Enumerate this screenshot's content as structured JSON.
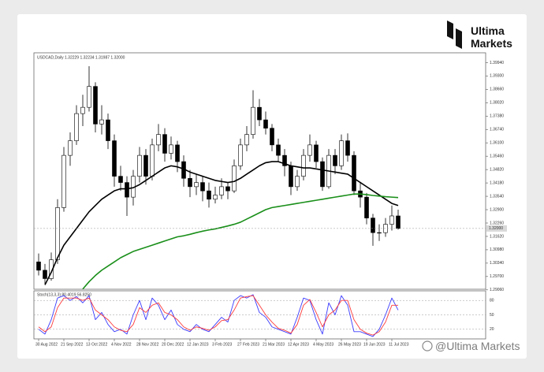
{
  "logo": {
    "line1": "Ultima",
    "line2": "Markets"
  },
  "watermark": "@Ultima Markets",
  "chart_data": {
    "type": "candlestick",
    "title": "USDCAD,Daily 1.32229 1.32234 1.31987 1.32000",
    "categories": [
      "30 Aug 2022",
      null,
      null,
      null,
      "21 Sep 2022",
      null,
      null,
      null,
      "13 Oct 2022",
      null,
      null,
      null,
      "4 Nov 2022",
      null,
      null,
      null,
      "28 Nov 2022",
      null,
      null,
      null,
      "20 Dec 2022",
      null,
      null,
      null,
      "12 Jan 2023",
      null,
      null,
      null,
      "3 Feb 2023",
      null,
      null,
      null,
      "27 Feb 2023",
      null,
      null,
      null,
      "21 Mar 2023",
      null,
      null,
      null,
      "12 Apr 2023",
      null,
      null,
      null,
      "4 May 2023",
      null,
      null,
      null,
      "26 May 2023",
      null,
      null,
      null,
      "19 Jun 2023",
      null,
      null,
      null,
      "11 Jul 2023",
      null
    ],
    "open": [
      1.304,
      1.3,
      1.296,
      1.305,
      1.33,
      1.355,
      1.362,
      1.375,
      1.378,
      1.388,
      1.37,
      1.372,
      1.362,
      1.345,
      1.342,
      1.335,
      1.345,
      1.355,
      1.345,
      1.36,
      1.365,
      1.356,
      1.36,
      1.352,
      1.344,
      1.34,
      1.342,
      1.338,
      1.334,
      1.336,
      1.34,
      1.338,
      1.35,
      1.36,
      1.365,
      1.378,
      1.372,
      1.368,
      1.36,
      1.355,
      1.35,
      1.34,
      1.345,
      1.355,
      1.36,
      1.352,
      1.34,
      1.355,
      1.35,
      1.362,
      1.355,
      1.338,
      1.335,
      1.325,
      1.318,
      1.318,
      1.322,
      1.326
    ],
    "high": [
      1.308,
      1.303,
      1.3085,
      1.334,
      1.359,
      1.366,
      1.379,
      1.384,
      1.3977,
      1.39,
      1.379,
      1.375,
      1.365,
      1.35,
      1.345,
      1.348,
      1.359,
      1.358,
      1.363,
      1.37,
      1.368,
      1.364,
      1.362,
      1.355,
      1.348,
      1.346,
      1.345,
      1.342,
      1.34,
      1.344,
      1.342,
      1.353,
      1.363,
      1.369,
      1.3862,
      1.382,
      1.376,
      1.37,
      1.363,
      1.358,
      1.352,
      1.348,
      1.358,
      1.365,
      1.362,
      1.354,
      1.358,
      1.358,
      1.365,
      1.3655,
      1.357,
      1.342,
      1.337,
      1.327,
      1.322,
      1.325,
      1.331,
      1.329
    ],
    "low": [
      1.2975,
      1.2935,
      1.295,
      1.303,
      1.328,
      1.35,
      1.36,
      1.369,
      1.376,
      1.366,
      1.365,
      1.358,
      1.34,
      1.338,
      1.326,
      1.331,
      1.342,
      1.341,
      1.343,
      1.357,
      1.352,
      1.353,
      1.347,
      1.34,
      1.335,
      1.336,
      1.333,
      1.33,
      1.332,
      1.334,
      1.334,
      1.337,
      1.348,
      1.357,
      1.363,
      1.369,
      1.365,
      1.357,
      1.352,
      1.345,
      1.336,
      1.338,
      1.343,
      1.352,
      1.349,
      1.338,
      1.339,
      1.346,
      1.348,
      1.352,
      1.336,
      1.33,
      1.322,
      1.3117,
      1.314,
      1.316,
      1.319,
      1.3195
    ],
    "close": [
      1.3,
      1.296,
      1.305,
      1.33,
      1.355,
      1.362,
      1.375,
      1.378,
      1.388,
      1.37,
      1.372,
      1.362,
      1.345,
      1.342,
      1.335,
      1.345,
      1.355,
      1.345,
      1.36,
      1.365,
      1.356,
      1.36,
      1.352,
      1.344,
      1.34,
      1.342,
      1.338,
      1.334,
      1.336,
      1.34,
      1.338,
      1.35,
      1.36,
      1.365,
      1.378,
      1.372,
      1.368,
      1.36,
      1.355,
      1.35,
      1.34,
      1.345,
      1.355,
      1.36,
      1.352,
      1.34,
      1.355,
      1.35,
      1.362,
      1.355,
      1.338,
      1.335,
      1.325,
      1.318,
      1.318,
      1.322,
      1.326,
      1.32
    ],
    "up_color": "#ffffff",
    "down_color": "#000000",
    "candle_outline": "#000000",
    "series": [
      {
        "color": "#000000",
        "values": [
          null,
          1.293,
          1.299,
          1.306,
          1.312,
          1.316,
          1.32,
          1.324,
          1.328,
          1.331,
          1.334,
          1.336,
          1.338,
          1.339,
          1.339,
          1.3395,
          1.341,
          1.343,
          1.345,
          1.347,
          1.349,
          1.35,
          1.3495,
          1.3485,
          1.347,
          1.346,
          1.345,
          1.344,
          1.343,
          1.3425,
          1.342,
          1.3425,
          1.344,
          1.346,
          1.348,
          1.35,
          1.3515,
          1.352,
          1.352,
          1.351,
          1.35,
          1.3495,
          1.349,
          1.349,
          1.3485,
          1.348,
          1.3475,
          1.347,
          1.3465,
          1.346,
          1.344,
          1.342,
          1.34,
          1.338,
          1.336,
          1.334,
          1.332,
          1.331
        ]
      },
      {
        "color": "#1a8f1a",
        "values": [
          null,
          null,
          null,
          null,
          null,
          null,
          null,
          1.291,
          1.2945,
          1.2975,
          1.3,
          1.302,
          1.304,
          1.306,
          1.3075,
          1.309,
          1.31,
          1.311,
          1.312,
          1.313,
          1.314,
          1.315,
          1.316,
          1.3165,
          1.3172,
          1.318,
          1.3187,
          1.3193,
          1.3198,
          1.3205,
          1.3212,
          1.322,
          1.323,
          1.3245,
          1.326,
          1.3275,
          1.329,
          1.33,
          1.3305,
          1.331,
          1.3315,
          1.332,
          1.3325,
          1.333,
          1.3335,
          1.334,
          1.3345,
          1.335,
          1.3355,
          1.336,
          1.3365,
          1.3365,
          1.3362,
          1.3358,
          1.3355,
          1.3352,
          1.335,
          1.3348
        ]
      }
    ],
    "ylim": [
      1.2909,
      1.4041
    ],
    "yticks": [
      {
        "value": 1.3994,
        "label": "1.39940"
      },
      {
        "value": 1.393,
        "label": "1.39300"
      },
      {
        "value": 1.3866,
        "label": "1.38660"
      },
      {
        "value": 1.3802,
        "label": "1.38020"
      },
      {
        "value": 1.3738,
        "label": "1.37380"
      },
      {
        "value": 1.3674,
        "label": "1.36740"
      },
      {
        "value": 1.361,
        "label": "1.36100"
      },
      {
        "value": 1.3546,
        "label": "1.35460"
      },
      {
        "value": 1.3482,
        "label": "1.34820"
      },
      {
        "value": 1.3418,
        "label": "1.34180"
      },
      {
        "value": 1.3354,
        "label": "1.33540"
      },
      {
        "value": 1.329,
        "label": "1.32900"
      },
      {
        "value": 1.3226,
        "label": "1.32260"
      },
      {
        "value": 1.3162,
        "label": "1.31620"
      },
      {
        "value": 1.3098,
        "label": "1.30980"
      },
      {
        "value": 1.3034,
        "label": "1.30340"
      },
      {
        "value": 1.297,
        "label": "1.29700"
      },
      {
        "value": 1.2906,
        "label": "1.29060"
      }
    ],
    "current_price": {
      "value": 1.32,
      "label": "1.32000"
    },
    "indicator": {
      "title": "Stoch(13,3,3) 80.4019 56.8250",
      "ylim": [
        0,
        100
      ],
      "yticks": [
        80,
        50,
        20
      ],
      "series": [
        {
          "color": "#3b3bff",
          "values": [
            20,
            10,
            40,
            85,
            90,
            80,
            88,
            75,
            90,
            40,
            55,
            30,
            15,
            20,
            10,
            50,
            80,
            40,
            85,
            70,
            40,
            60,
            30,
            20,
            15,
            30,
            20,
            15,
            30,
            45,
            35,
            80,
            90,
            85,
            92,
            55,
            45,
            25,
            20,
            15,
            10,
            45,
            85,
            80,
            40,
            10,
            75,
            50,
            90,
            70,
            15,
            15,
            10,
            5,
            20,
            50,
            85,
            60
          ]
        },
        {
          "color": "#ff3b3b",
          "values": [
            25,
            15,
            25,
            65,
            85,
            85,
            85,
            80,
            85,
            60,
            50,
            40,
            25,
            18,
            15,
            30,
            65,
            55,
            70,
            75,
            55,
            50,
            40,
            25,
            18,
            25,
            22,
            18,
            25,
            38,
            40,
            60,
            85,
            88,
            90,
            70,
            50,
            35,
            22,
            18,
            12,
            30,
            70,
            82,
            55,
            25,
            50,
            60,
            80,
            80,
            40,
            20,
            12,
            8,
            15,
            35,
            70,
            70
          ]
        }
      ]
    }
  }
}
